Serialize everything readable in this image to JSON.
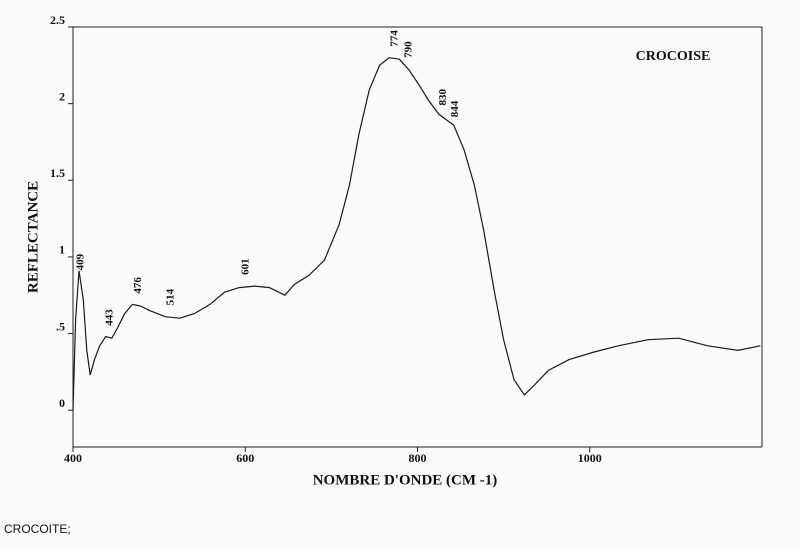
{
  "chart_data": {
    "type": "line",
    "title": "CROCOISE",
    "x_label": "NOMBRE D'ONDE (CM -1)",
    "y_label": "REFLECTANCE",
    "caption": "CROCOITE;",
    "xlim": [
      400,
      1200
    ],
    "ylim": [
      -0.24,
      2.5
    ],
    "xticks": [
      400,
      600,
      800,
      1000
    ],
    "yticks": [
      0,
      {
        "value": 0.5,
        "label": ".5"
      },
      1,
      1.5,
      2,
      2.5
    ],
    "color": "#1a1a1a",
    "peak_labels": [
      409,
      443,
      476,
      514,
      601,
      774,
      790,
      830,
      844
    ],
    "x": [
      400,
      403,
      407,
      412,
      416,
      420,
      425,
      431,
      438,
      445,
      452,
      460,
      469,
      478,
      489,
      507,
      524,
      541,
      559,
      576,
      593,
      611,
      628,
      646,
      657,
      674,
      692,
      709,
      721,
      732,
      744,
      756,
      767,
      779,
      790,
      802,
      813,
      825,
      842,
      854,
      866,
      877,
      889,
      900,
      912,
      924,
      935,
      952,
      976,
      1005,
      1033,
      1068,
      1103,
      1137,
      1172,
      1198
    ],
    "values": [
      0,
      0.59,
      0.91,
      0.72,
      0.39,
      0.23,
      0.33,
      0.42,
      0.48,
      0.47,
      0.54,
      0.63,
      0.69,
      0.68,
      0.65,
      0.61,
      0.6,
      0.63,
      0.69,
      0.77,
      0.8,
      0.81,
      0.8,
      0.75,
      0.82,
      0.88,
      0.98,
      1.21,
      1.47,
      1.8,
      2.09,
      2.25,
      2.3,
      2.29,
      2.22,
      2.12,
      2.02,
      1.93,
      1.86,
      1.7,
      1.47,
      1.17,
      0.78,
      0.46,
      0.2,
      0.1,
      0.16,
      0.26,
      0.33,
      0.38,
      0.42,
      0.46,
      0.47,
      0.42,
      0.39,
      0.42
    ]
  }
}
